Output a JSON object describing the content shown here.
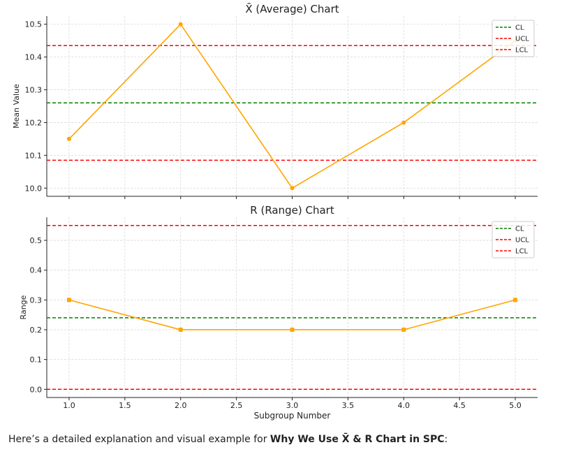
{
  "chart_data": [
    {
      "type": "line",
      "title": "X̄ (Average) Chart",
      "ylabel": "Mean Value",
      "xlabel": "",
      "x": [
        1,
        2,
        3,
        4,
        5
      ],
      "values": [
        10.15,
        10.5,
        10.0,
        10.2,
        10.45
      ],
      "ylim": [
        9.975,
        10.525
      ],
      "xlim": [
        0.8,
        5.2
      ],
      "yticks": [
        10.0,
        10.1,
        10.2,
        10.3,
        10.4,
        10.5
      ],
      "ytick_labels": [
        "10.0",
        "10.1",
        "10.2",
        "10.3",
        "10.4",
        "10.5"
      ],
      "control_lines": [
        {
          "name": "CL",
          "value": 10.26,
          "color": "#008000"
        },
        {
          "name": "UCL",
          "value": 10.435,
          "color": "#ff0000"
        },
        {
          "name": "LCL",
          "value": 10.085,
          "color": "#ff0000"
        }
      ],
      "line_color": "#ffa500",
      "marker": "circle",
      "grid": true,
      "legend": "top-right"
    },
    {
      "type": "line",
      "title": "R (Range) Chart",
      "ylabel": "Range",
      "xlabel": "Subgroup Number",
      "x": [
        1,
        2,
        3,
        4,
        5
      ],
      "values": [
        0.3,
        0.2,
        0.2,
        0.2,
        0.3
      ],
      "ylim": [
        -0.0275,
        0.5775
      ],
      "xlim": [
        0.8,
        5.2
      ],
      "yticks": [
        0.0,
        0.1,
        0.2,
        0.3,
        0.4,
        0.5
      ],
      "ytick_labels": [
        "0.0",
        "0.1",
        "0.2",
        "0.3",
        "0.4",
        "0.5"
      ],
      "xticks": [
        1.0,
        1.5,
        2.0,
        2.5,
        3.0,
        3.5,
        4.0,
        4.5,
        5.0
      ],
      "xtick_labels": [
        "1.0",
        "1.5",
        "2.0",
        "2.5",
        "3.0",
        "3.5",
        "4.0",
        "4.5",
        "5.0"
      ],
      "control_lines": [
        {
          "name": "CL",
          "value": 0.24,
          "color": "#008000"
        },
        {
          "name": "UCL",
          "value": 0.55,
          "color": "#ff0000"
        },
        {
          "name": "LCL",
          "value": 0.0,
          "color": "#ff0000"
        }
      ],
      "line_color": "#ffa500",
      "marker": "square",
      "grid": true,
      "legend": "top-right"
    }
  ],
  "caption": {
    "prefix": "Here’s a detailed explanation and visual example for ",
    "bold": "Why We Use X̄ & R Chart in SPC",
    "suffix": ":"
  }
}
